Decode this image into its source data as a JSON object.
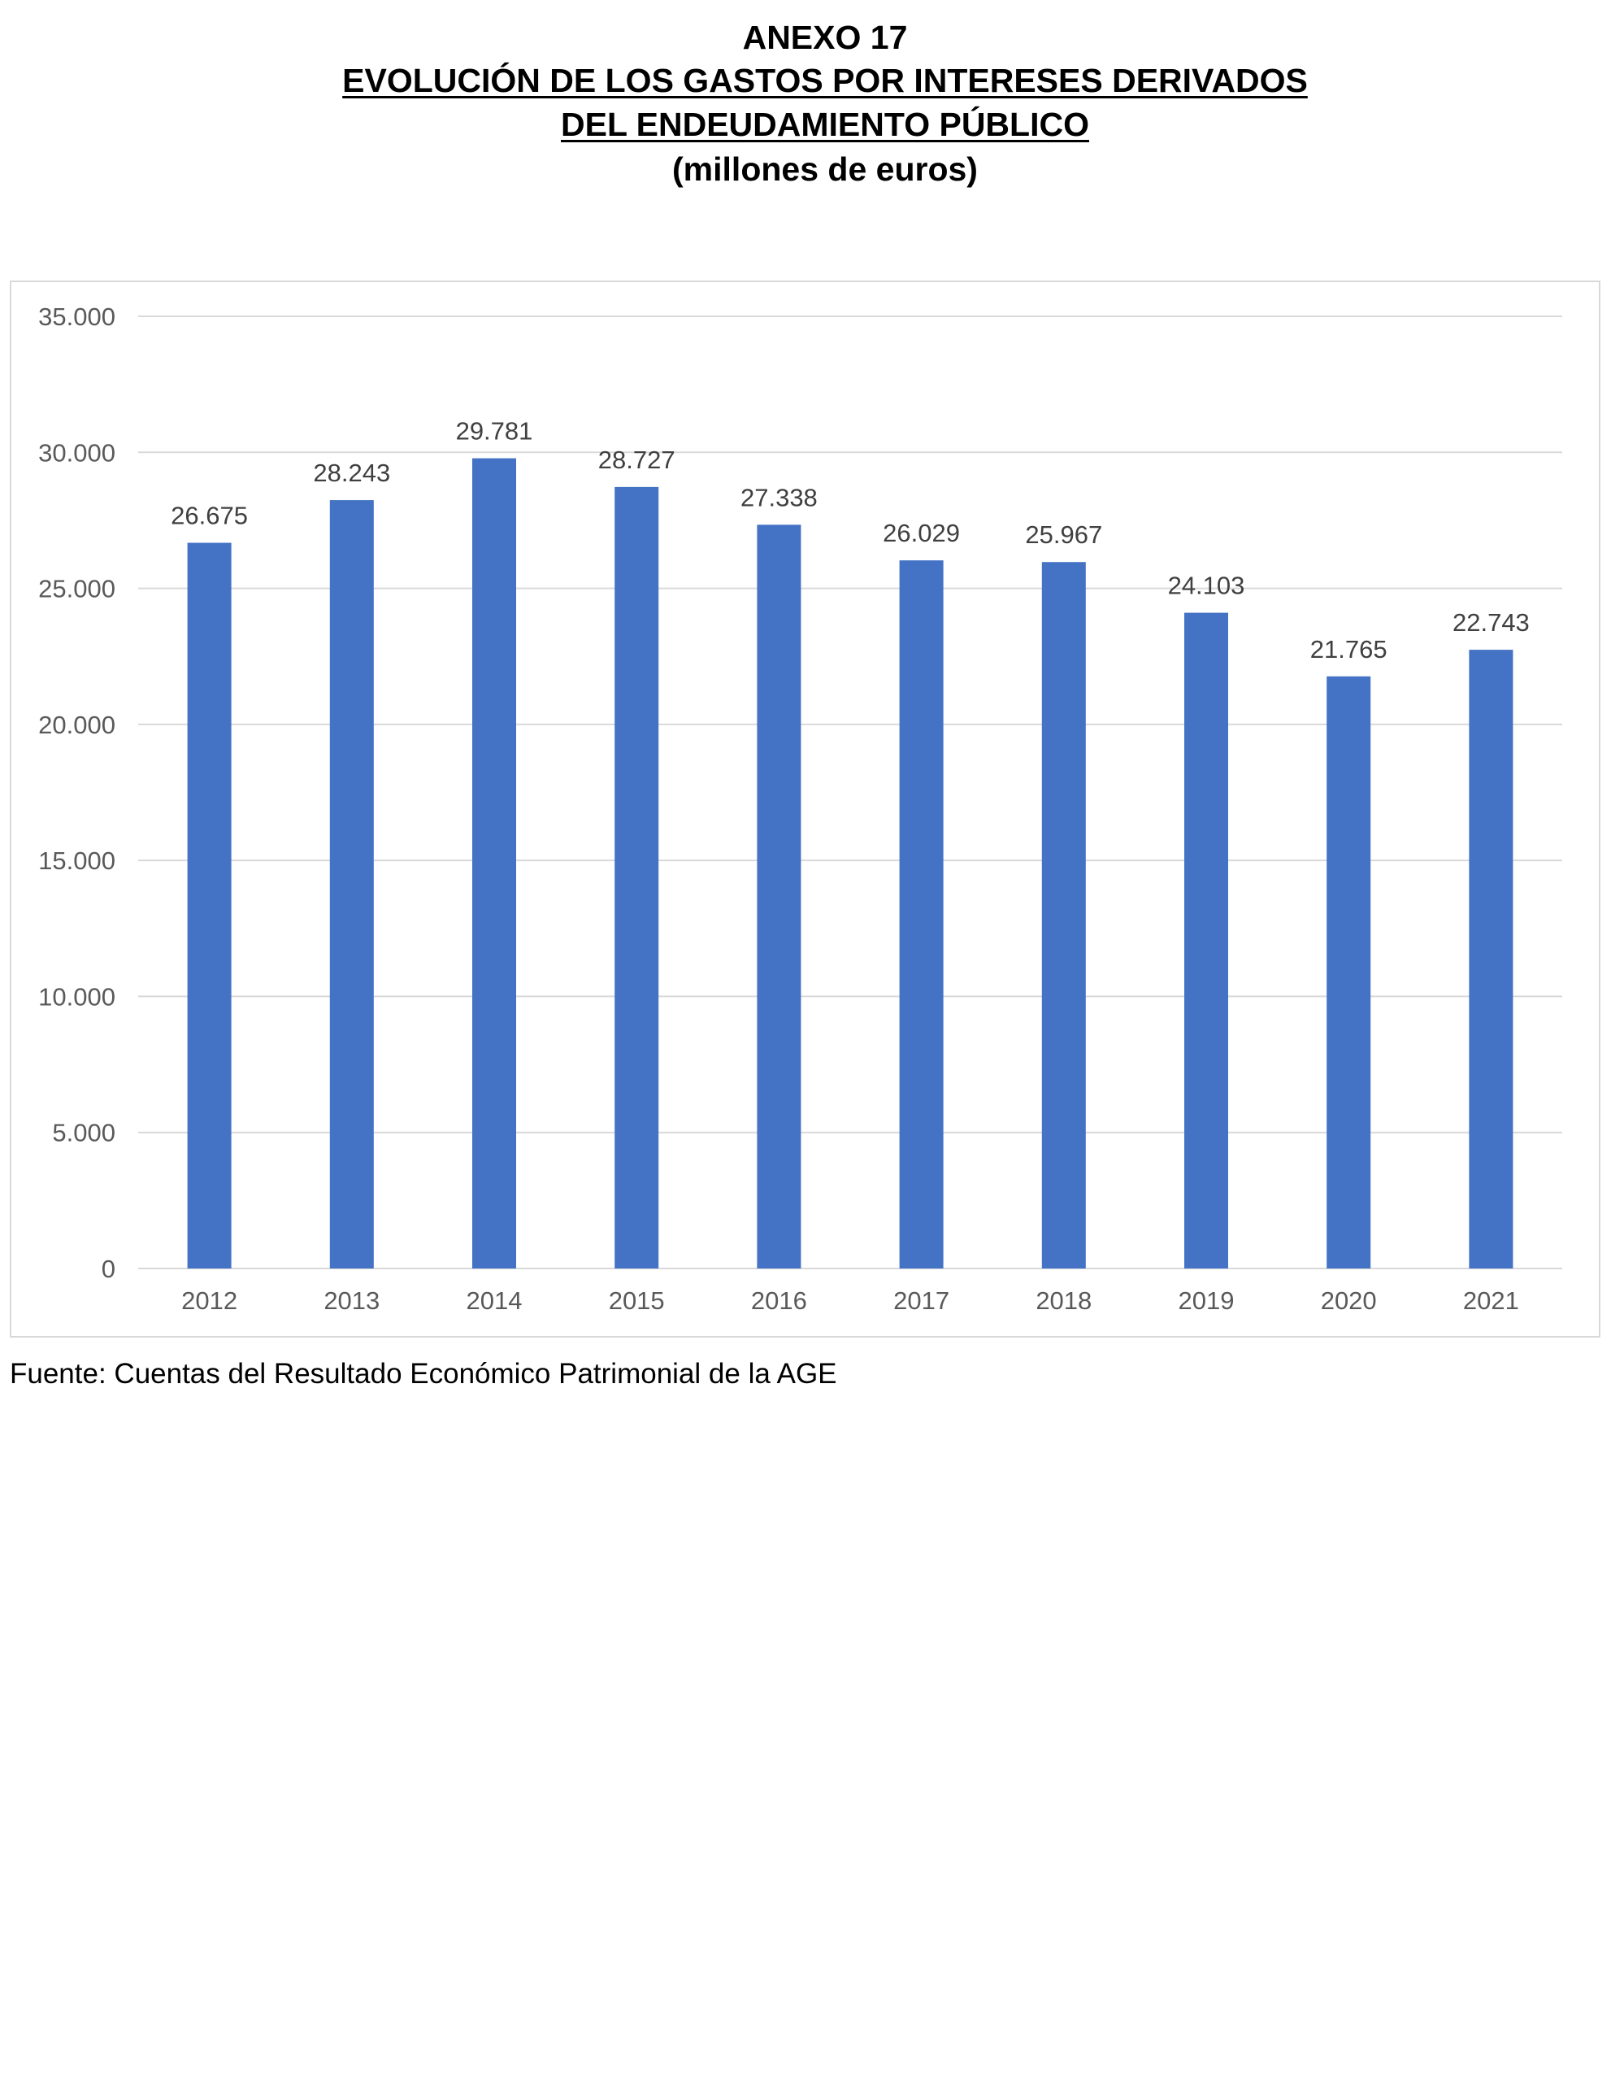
{
  "header": {
    "line1": "ANEXO 17",
    "line2": "EVOLUCIÓN DE LOS GASTOS POR INTERESES DERIVADOS",
    "line3": "DEL ENDEUDAMIENTO PÚBLICO",
    "line4": "(millones de euros)"
  },
  "chart_data": {
    "type": "bar",
    "categories": [
      "2012",
      "2013",
      "2014",
      "2015",
      "2016",
      "2017",
      "2018",
      "2019",
      "2020",
      "2021"
    ],
    "values": [
      26675,
      28243,
      29781,
      28727,
      27338,
      26029,
      25967,
      24103,
      21765,
      22743
    ],
    "value_labels": [
      "26.675",
      "28.243",
      "29.781",
      "28.727",
      "27.338",
      "26.029",
      "25.967",
      "24.103",
      "21.765",
      "22.743"
    ],
    "ylim": [
      0,
      35000
    ],
    "yticks": [
      0,
      5000,
      10000,
      15000,
      20000,
      25000,
      30000,
      35000
    ],
    "ytick_labels": [
      "0",
      "5.000",
      "10.000",
      "15.000",
      "20.000",
      "25.000",
      "30.000",
      "35.000"
    ],
    "grid": "horizontal",
    "legend": "none",
    "bar_color": "#4472c4",
    "grid_color": "#d9d9d9",
    "label_color": "#404040",
    "tick_color": "#595959"
  },
  "footer": {
    "source": "Fuente: Cuentas del Resultado Económico Patrimonial de la AGE"
  }
}
